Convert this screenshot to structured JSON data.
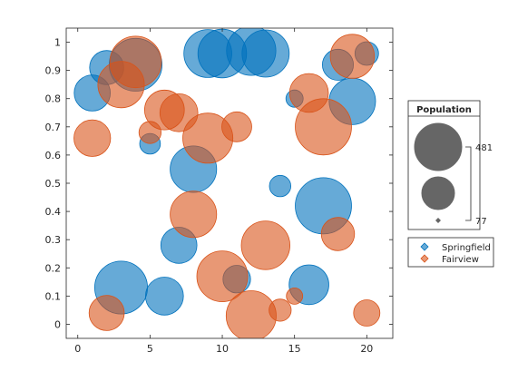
{
  "chart_data": {
    "type": "scatter",
    "subtype": "bubble",
    "title": "",
    "xlabel": "",
    "ylabel": "",
    "xlim": [
      -0.8,
      21.8
    ],
    "ylim": [
      -0.05,
      1.05
    ],
    "xticks": [
      0,
      5,
      10,
      15,
      20
    ],
    "yticks": [
      0,
      0.1,
      0.2,
      0.3,
      0.4,
      0.5,
      0.6,
      0.7,
      0.8,
      0.9,
      1
    ],
    "grid": false,
    "bubble_legend": {
      "title": "Population",
      "max_label": "481",
      "min_label": "77",
      "size_range": [
        77,
        481
      ]
    },
    "series": [
      {
        "name": "Springfield",
        "color": "#0072BD",
        "x": [
          1,
          2,
          3,
          4,
          5,
          6,
          7,
          8,
          9,
          10,
          11,
          12,
          13,
          14,
          15,
          16,
          17,
          18,
          19,
          20
        ],
        "y": [
          0.82,
          0.91,
          0.13,
          0.92,
          0.64,
          0.1,
          0.28,
          0.55,
          0.96,
          0.96,
          0.16,
          0.97,
          0.96,
          0.49,
          0.8,
          0.14,
          0.42,
          0.92,
          0.79,
          0.96
        ],
        "size": [
          210,
          190,
          420,
          420,
          80,
          230,
          210,
          330,
          350,
          360,
          130,
          370,
          340,
          85,
          60,
          250,
          470,
          160,
          330,
          100
        ]
      },
      {
        "name": "Fairview",
        "color": "#D95319",
        "x": [
          1,
          2,
          3,
          4,
          5,
          6,
          7,
          8,
          9,
          10,
          11,
          12,
          13,
          14,
          15,
          16,
          17,
          18,
          19,
          20
        ],
        "y": [
          0.66,
          0.04,
          0.85,
          0.93,
          0.68,
          0.76,
          0.75,
          0.39,
          0.66,
          0.17,
          0.7,
          0.03,
          0.28,
          0.05,
          0.1,
          0.82,
          0.7,
          0.32,
          0.95,
          0.04
        ],
        "size": [
          215,
          200,
          330,
          400,
          90,
          250,
          230,
          330,
          380,
          390,
          150,
          380,
          360,
          90,
          55,
          240,
          470,
          180,
          300,
          120
        ]
      }
    ]
  }
}
